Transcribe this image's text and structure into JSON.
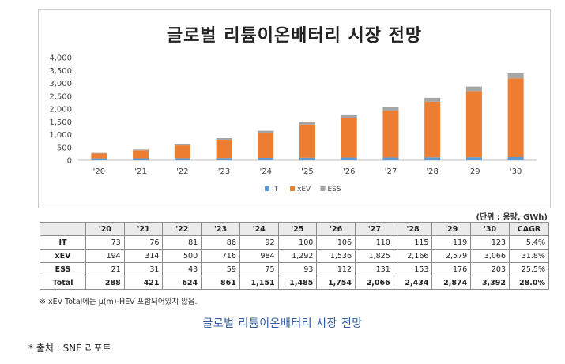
{
  "chart_data": {
    "type": "bar",
    "stacked": true,
    "title": "글로벌 리튬이온배터리 시장 전망",
    "categories": [
      "'20",
      "'21",
      "'22",
      "'23",
      "'24",
      "'25",
      "'26",
      "'27",
      "'28",
      "'29",
      "'30"
    ],
    "series": [
      {
        "name": "IT",
        "color": "#5b9bd5",
        "values": [
          73,
          76,
          81,
          86,
          92,
          100,
          106,
          110,
          115,
          119,
          123
        ]
      },
      {
        "name": "xEV",
        "color": "#ed7d31",
        "values": [
          194,
          314,
          500,
          716,
          984,
          1292,
          1536,
          1825,
          2166,
          2579,
          3066
        ]
      },
      {
        "name": "ESS",
        "color": "#a5a5a5",
        "values": [
          21,
          31,
          43,
          59,
          75,
          93,
          112,
          131,
          153,
          176,
          203
        ]
      }
    ],
    "ylim": [
      0,
      4000
    ],
    "yticks": [
      "0",
      "500",
      "1,000",
      "1,500",
      "2,000",
      "2,500",
      "3,000",
      "3,500",
      "4,000"
    ],
    "ytick_values": [
      0,
      500,
      1000,
      1500,
      2000,
      2500,
      3000,
      3500,
      4000
    ],
    "legend_position": "bottom",
    "grid": false
  },
  "unit_note": "(단위 : 용량, GWh)",
  "table": {
    "headers": [
      "",
      "'20",
      "'21",
      "'22",
      "'23",
      "'24",
      "'25",
      "'26",
      "'27",
      "'28",
      "'29",
      "'30",
      "CAGR"
    ],
    "rows": [
      {
        "label": "IT",
        "cells": [
          "73",
          "76",
          "81",
          "86",
          "92",
          "100",
          "106",
          "110",
          "115",
          "119",
          "123",
          "5.4%"
        ]
      },
      {
        "label": "xEV",
        "cells": [
          "194",
          "314",
          "500",
          "716",
          "984",
          "1,292",
          "1,536",
          "1,825",
          "2,166",
          "2,579",
          "3,066",
          "31.8%"
        ]
      },
      {
        "label": "ESS",
        "cells": [
          "21",
          "31",
          "43",
          "59",
          "75",
          "93",
          "112",
          "131",
          "153",
          "176",
          "203",
          "25.5%"
        ]
      },
      {
        "label": "Total",
        "cells": [
          "288",
          "421",
          "624",
          "861",
          "1,151",
          "1,485",
          "1,754",
          "2,066",
          "2,434",
          "2,874",
          "3,392",
          "28.0%"
        ]
      }
    ]
  },
  "footnote": "※ xEV Total에는 μ(m)-HEV 포함되어있지 않음.",
  "caption": "글로벌 리튬이온배터리 시장 전망",
  "source": "* 출처 : SNE 리포트"
}
